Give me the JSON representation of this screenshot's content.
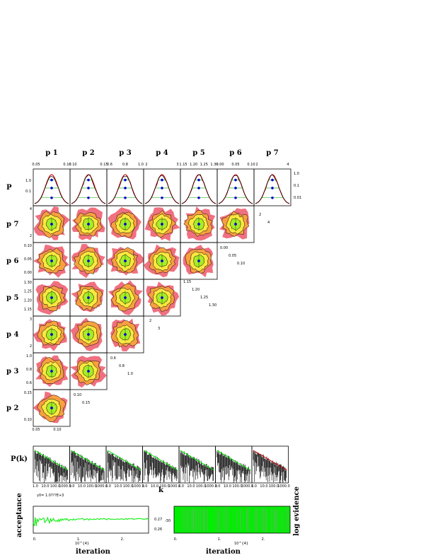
{
  "chart_data": {
    "type": "scatter",
    "kind": "mcmc-corner-plot",
    "params": [
      "p 1",
      "p 2",
      "p 3",
      "p 4",
      "p 5",
      "p 6",
      "p 7"
    ],
    "top_row_label": "P",
    "row_labels": [
      "P",
      "p 7",
      "p 6",
      "p 5",
      "p 4",
      "p 3",
      "p 2"
    ],
    "colors": {
      "outer": "#f07080",
      "mid": "#f8a040",
      "inner": "#f8e840",
      "core": "#a8ec28",
      "contour": "#000000",
      "marker": "#0000cc",
      "curve": "#cc0000",
      "trace": "#00ee00"
    },
    "ticks": {
      "p1": [
        "0.05",
        "0.10"
      ],
      "p2": [
        "0.10",
        "0.15"
      ],
      "p3": [
        "0.6",
        "0.8",
        "1.0"
      ],
      "p4": [
        "2",
        "3"
      ],
      "p5": [
        "1.15",
        "1.20",
        "1.25",
        "1.30"
      ],
      "p6": [
        "0.00",
        "0.05",
        "0.10"
      ],
      "p7": [
        "2",
        "4"
      ],
      "P": [
        "1.0",
        "0.1",
        "0.01"
      ],
      "P_left": [
        "1.0",
        "0.1"
      ]
    },
    "marginal_levels": [
      "1.0",
      "0.1",
      "0.01"
    ],
    "bestfit": {
      "p 1": 0.09,
      "p 2": 0.13,
      "p 3": 0.76,
      "p 4": 2.6,
      "p 5": 1.22,
      "p 6": 0.07,
      "p 7": 3.3
    },
    "power_spectra": {
      "ylabel": "P(k)",
      "xlabel": "k",
      "xticks": [
        "1.0",
        "10.0",
        "100.0",
        "1000.0"
      ],
      "panels": 7
    },
    "acceptance": {
      "annotation": "γ0= 1.0???E+3",
      "ylabel": "acceptance",
      "xlabel": "iteration",
      "x_exponent": "10^{4}",
      "xticks": [
        "0.",
        "1.",
        "2."
      ],
      "yticks": [
        "0.27",
        "0.26"
      ]
    },
    "evidence": {
      "ylabel": "log evidence",
      "xlabel": "iteration",
      "x_exponent": "10^{4}",
      "xticks": [
        "0.",
        "1.",
        "2."
      ],
      "yticks": [
        "-30"
      ]
    }
  }
}
